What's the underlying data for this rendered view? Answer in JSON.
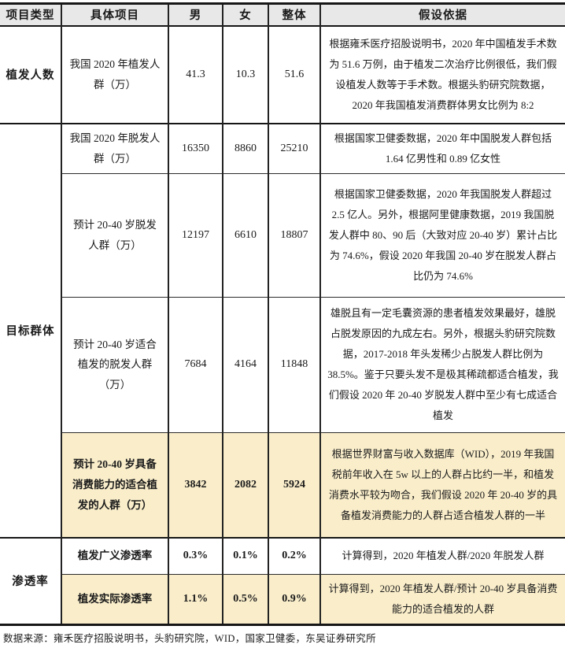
{
  "colors": {
    "header_bg": "#e8e8e8",
    "highlight_bg": "#f9edca",
    "border": "#161616",
    "text": "#1a1a1a"
  },
  "table": {
    "headers": {
      "category": "项目类型",
      "item": "具体项目",
      "male": "男",
      "female": "女",
      "total": "整体",
      "basis": "假设依据"
    },
    "sections": [
      {
        "category": "植发人数",
        "rows": [
          {
            "item": "我国 2020 年植发人群（万）",
            "male": "41.3",
            "female": "10.3",
            "total": "51.6",
            "basis": "根据雍禾医疗招股说明书，2020 年中国植发手术数为 51.6 万例，由于植发二次治疗比例很低，我们假设植发人数等于手术数。根据头豹研究院数据，2020 年我国植发消费群体男女比例为 8:2"
          }
        ]
      },
      {
        "category": "目标群体",
        "rows": [
          {
            "item": "我国 2020 年脱发人群（万）",
            "male": "16350",
            "female": "8860",
            "total": "25210",
            "basis": "根据国家卫健委数据，2020 年中国脱发人群包括 1.64 亿男性和 0.89 亿女性"
          },
          {
            "item": "预计 20-40 岁脱发人群（万）",
            "male": "12197",
            "female": "6610",
            "total": "18807",
            "basis": "根据国家卫健委数据，2020 年我国脱发人群超过 2.5 亿人。另外，根据阿里健康数据，2019 我国脱发人群中 80、90 后（大致对应 20-40 岁）累计占比为 74.6%，假设 2020 年我国 20-40 岁在脱发人群占比仍为 74.6%"
          },
          {
            "item": "预计 20-40 岁适合植发的脱发人群（万）",
            "male": "7684",
            "female": "4164",
            "total": "11848",
            "basis": "雄脱且有一定毛囊资源的患者植发效果最好，雄脱占脱发原因的九成左右。另外，根据头豹研究院数据，2017-2018 年头发稀少占脱发人群比例为 38.5%。鉴于只要头发不是极其稀疏都适合植发，我们假设 2020 年 20-40 岁脱发人群中至少有七成适合植发"
          },
          {
            "item": "预计 20-40 岁具备消费能力的适合植发的人群（万）",
            "male": "3842",
            "female": "2082",
            "total": "5924",
            "basis": "根据世界财富与收入数据库（WID），2019 年我国税前年收入在 5w 以上的人群占比约一半，和植发消费水平较为吻合，我们假设 2020 年 20-40 岁的具备植发消费能力的人群占适合植发人群的一半"
          }
        ]
      },
      {
        "category": "渗透率",
        "rows": [
          {
            "item": "植发广义渗透率",
            "male": "0.3%",
            "female": "0.1%",
            "total": "0.2%",
            "basis": "计算得到，2020 年植发人群/2020 年脱发人群"
          },
          {
            "item": "植发实际渗透率",
            "male": "1.1%",
            "female": "0.5%",
            "total": "0.9%",
            "basis": "计算得到，2020 年植发人群/预计 20-40 岁具备消费能力的适合植发的人群"
          }
        ]
      }
    ]
  },
  "footer": {
    "source": "数据来源：雍禾医疗招股说明书，头豹研究院，WID，国家卫健委，东吴证券研究所"
  }
}
